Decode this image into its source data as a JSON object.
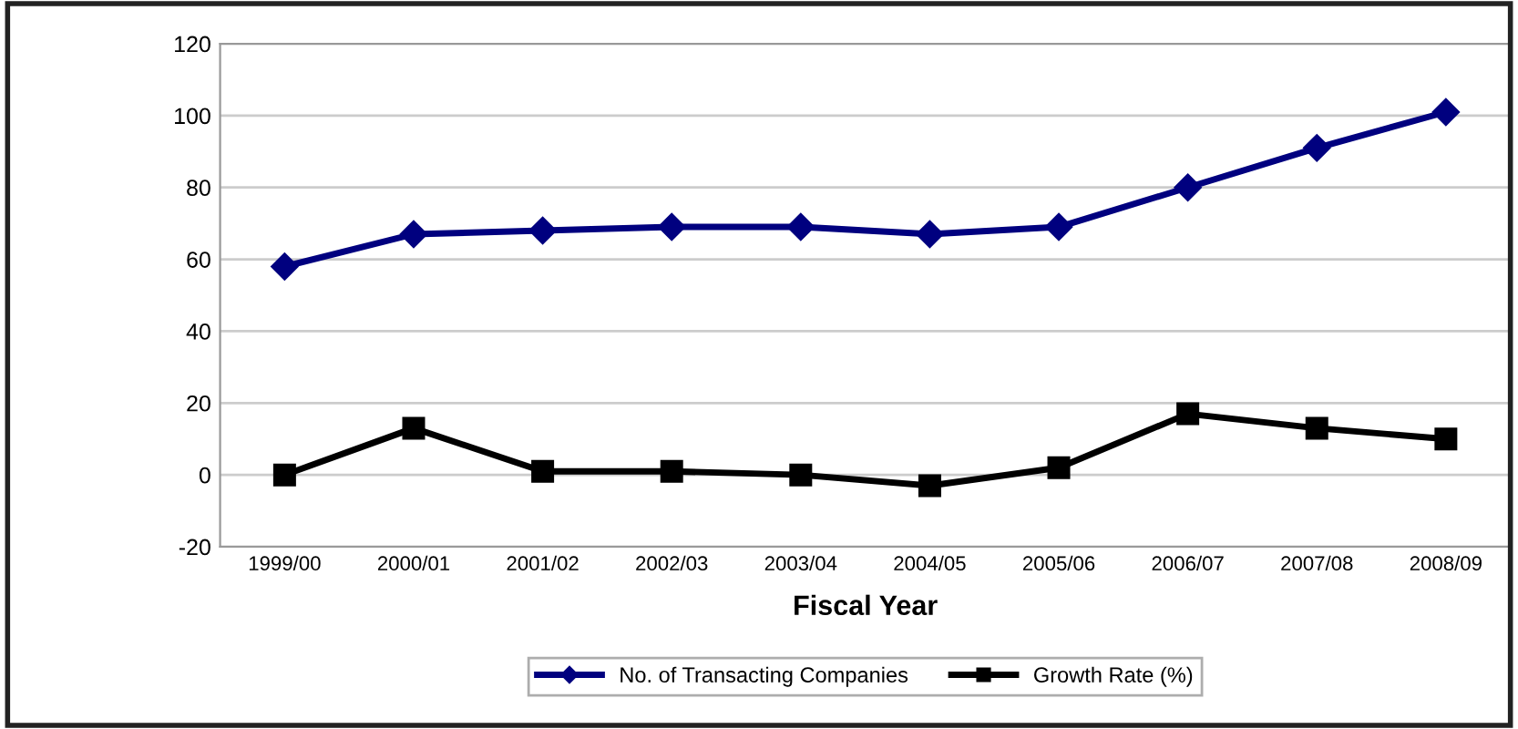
{
  "chart_data": {
    "type": "line",
    "xlabel": "Fiscal Year",
    "categories": [
      "1999/00",
      "2000/01",
      "2001/02",
      "2002/03",
      "2003/04",
      "2004/05",
      "2005/06",
      "2006/07",
      "2007/08",
      "2008/09"
    ],
    "series": [
      {
        "name": "No. of Transacting Companies",
        "color": "#00007f",
        "marker": "diamond",
        "values": [
          58,
          67,
          68,
          69,
          69,
          67,
          69,
          80,
          91,
          101
        ]
      },
      {
        "name": "Growth Rate (%)",
        "color": "#000000",
        "marker": "square",
        "values": [
          0,
          13,
          1,
          1,
          0,
          -3,
          2,
          17,
          13,
          10
        ]
      }
    ],
    "ylim": [
      -20,
      120
    ],
    "yticks": [
      -20,
      0,
      20,
      40,
      60,
      80,
      100,
      120
    ],
    "grid": "y",
    "legend": "bottom",
    "line_style": "solid"
  }
}
